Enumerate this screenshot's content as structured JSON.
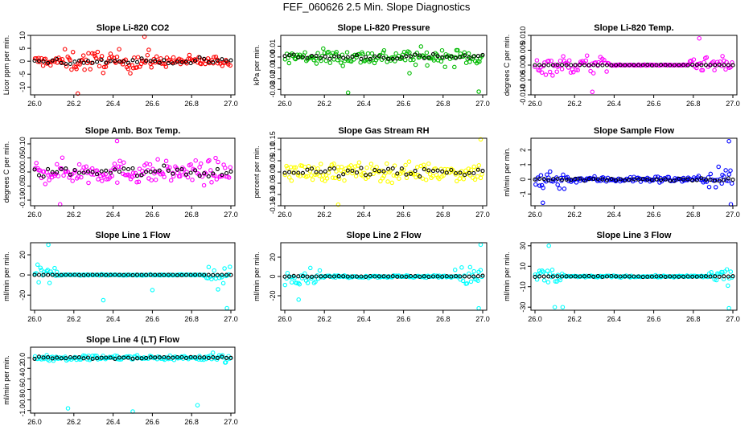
{
  "title": "FEF_060626  2.5 Min. Slope Diagnostics",
  "chart_data": [
    {
      "type": "scatter",
      "title": "Slope Li-820 CO2",
      "ylabel": "Licor ppm per min.",
      "color": "#ff0000",
      "xticks": [
        "26.0",
        "26.2",
        "26.4",
        "26.6",
        "26.8",
        "27.0"
      ],
      "xlim": [
        26.0,
        27.0
      ],
      "ylim": [
        -13,
        10
      ],
      "yticks": [
        -10,
        -5,
        0,
        5,
        10
      ],
      "ytick_labels": [
        "-10",
        "-5",
        "0",
        "5",
        "10"
      ],
      "spread": 2.5,
      "burst": [
        [
          26.15,
          26.6,
          5
        ]
      ],
      "outliers": [
        [
          26.22,
          -12.5
        ],
        [
          26.56,
          9.5
        ]
      ]
    },
    {
      "type": "scatter",
      "title": "Slope Li-820 Pressure",
      "ylabel": "kPa per min.",
      "color": "#00bb00",
      "xticks": [
        "26.0",
        "26.2",
        "26.4",
        "26.6",
        "26.8",
        "27.0"
      ],
      "xlim": [
        26.0,
        27.0
      ],
      "ylim": [
        -0.035,
        0.02
      ],
      "yticks": [
        -0.03,
        -0.02,
        -0.01,
        0.0,
        0.01
      ],
      "ytick_labels": [
        "-0.03",
        "-0.02",
        "-0.01",
        "0.00",
        "0.01"
      ],
      "spread": 0.006,
      "burst": [
        [
          26.0,
          27.0,
          0.009
        ]
      ],
      "outliers": [
        [
          26.32,
          -0.033
        ],
        [
          26.98,
          -0.032
        ],
        [
          26.63,
          -0.015
        ]
      ]
    },
    {
      "type": "scatter",
      "title": "Slope Li-820 Temp.",
      "ylabel": "degrees C per min.",
      "color": "#ff00ff",
      "xticks": [
        "26.0",
        "26.2",
        "26.4",
        "26.6",
        "26.8",
        "27.0"
      ],
      "xlim": [
        26.0,
        27.0
      ],
      "ylim": [
        -0.01,
        0.01
      ],
      "yticks": [
        -0.01,
        -0.005,
        0.0,
        0.005,
        0.01
      ],
      "ytick_labels": [
        "-0.010",
        "-0.005",
        "0.000",
        "0.005",
        "0.010"
      ],
      "spread": 0.0002,
      "burst": [
        [
          26.0,
          26.38,
          0.004
        ],
        [
          26.78,
          27.0,
          0.003
        ]
      ],
      "outliers": [
        [
          26.29,
          -0.009
        ],
        [
          26.83,
          0.009
        ]
      ]
    },
    {
      "type": "scatter",
      "title": "Slope Amb. Box Temp.",
      "ylabel": "degrees C per min.",
      "color": "#ff00ff",
      "xticks": [
        "26.0",
        "26.2",
        "26.4",
        "26.6",
        "26.8",
        "27.0"
      ],
      "xlim": [
        26.0,
        27.0
      ],
      "ylim": [
        -0.12,
        0.12
      ],
      "yticks": [
        -0.1,
        -0.05,
        0.0,
        0.05,
        0.1
      ],
      "ytick_labels": [
        "-0.10",
        "-0.05",
        "0.00",
        "0.05",
        "0.10"
      ],
      "spread": 0.05,
      "burst": [
        [
          26.0,
          27.0,
          0.05
        ]
      ],
      "outliers": [
        [
          26.13,
          -0.115
        ],
        [
          26.42,
          0.11
        ]
      ]
    },
    {
      "type": "scatter",
      "title": "Slope Gas Stream RH",
      "ylabel": "percent per min.",
      "color": "#ffff00",
      "xticks": [
        "26.0",
        "26.2",
        "26.4",
        "26.6",
        "26.8",
        "27.0"
      ],
      "xlim": [
        26.0,
        27.0
      ],
      "ylim": [
        -0.15,
        0.15
      ],
      "yticks": [
        -0.15,
        -0.1,
        -0.05,
        0.0,
        0.05,
        0.1,
        0.15
      ],
      "ytick_labels": [
        "-0.15",
        "-0.10",
        "-0.05",
        "0.00",
        "0.05",
        "0.10",
        "0.15"
      ],
      "spread": 0.05,
      "burst": [
        [
          26.0,
          27.0,
          0.04
        ]
      ],
      "outliers": [
        [
          26.27,
          -0.145
        ],
        [
          26.99,
          0.145
        ]
      ]
    },
    {
      "type": "scatter",
      "title": "Slope Sample Flow",
      "ylabel": "ml/min per min.",
      "color": "#0000ff",
      "xticks": [
        "26.0",
        "26.2",
        "26.4",
        "26.6",
        "26.8",
        "27.0"
      ],
      "xlim": [
        26.0,
        27.0
      ],
      "ylim": [
        -1.8,
        2.8
      ],
      "yticks": [
        -1,
        0,
        1,
        2
      ],
      "ytick_labels": [
        "-1",
        "0",
        "1",
        "2"
      ],
      "spread": 0.25,
      "burst": [
        [
          26.0,
          26.15,
          0.9
        ],
        [
          26.88,
          27.0,
          1.2
        ]
      ],
      "outliers": [
        [
          26.04,
          -1.6
        ],
        [
          26.98,
          2.6
        ],
        [
          26.99,
          -1.7
        ]
      ]
    },
    {
      "type": "scatter",
      "title": "Slope Line 1 Flow",
      "ylabel": "ml/min per min.",
      "color": "#00ffff",
      "xticks": [
        "26.0",
        "26.2",
        "26.4",
        "26.6",
        "26.8",
        "27.0"
      ],
      "xlim": [
        26.0,
        27.0
      ],
      "ylim": [
        -35,
        32
      ],
      "yticks": [
        -20,
        0,
        20
      ],
      "ytick_labels": [
        "-20",
        "0",
        "20"
      ],
      "spread": 0.5,
      "burst": [
        [
          26.0,
          26.12,
          12
        ],
        [
          26.86,
          27.0,
          14
        ]
      ],
      "outliers": [
        [
          26.07,
          30
        ],
        [
          26.98,
          -33
        ],
        [
          26.35,
          -25
        ],
        [
          26.6,
          -15
        ]
      ]
    },
    {
      "type": "scatter",
      "title": "Slope Line 2 Flow",
      "ylabel": "ml/min per min.",
      "color": "#00ffff",
      "xticks": [
        "26.0",
        "26.2",
        "26.4",
        "26.6",
        "26.8",
        "27.0"
      ],
      "xlim": [
        26.0,
        27.0
      ],
      "ylim": [
        -35,
        35
      ],
      "yticks": [
        -20,
        0,
        20
      ],
      "ytick_labels": [
        "-20",
        "0",
        "20"
      ],
      "spread": 1.5,
      "burst": [
        [
          26.0,
          26.18,
          9
        ],
        [
          26.86,
          27.0,
          12
        ]
      ],
      "outliers": [
        [
          26.99,
          33
        ],
        [
          26.98,
          -33
        ],
        [
          26.07,
          -24
        ]
      ]
    },
    {
      "type": "scatter",
      "title": "Slope Line 3 Flow",
      "ylabel": "ml/min per min.",
      "color": "#00ffff",
      "xticks": [
        "26.0",
        "26.2",
        "26.4",
        "26.6",
        "26.8",
        "27.0"
      ],
      "xlim": [
        26.0,
        27.0
      ],
      "ylim": [
        -33,
        33
      ],
      "yticks": [
        -30,
        -10,
        10,
        30
      ],
      "ytick_labels": [
        "-30",
        "-10",
        "10",
        "30"
      ],
      "spread": 1.0,
      "burst": [
        [
          26.0,
          26.15,
          9
        ],
        [
          26.88,
          27.0,
          11
        ]
      ],
      "outliers": [
        [
          26.07,
          30
        ],
        [
          26.1,
          -30
        ],
        [
          26.14,
          -30
        ],
        [
          26.98,
          -31
        ]
      ]
    },
    {
      "type": "scatter",
      "title": "Slope Line 4 (LT) Flow",
      "ylabel": "ml/min per min.",
      "color": "#00ffff",
      "xticks": [
        "26.0",
        "26.2",
        "26.4",
        "26.6",
        "26.8",
        "27.0"
      ],
      "xlim": [
        26.0,
        27.0
      ],
      "ylim": [
        -1.05,
        0.2
      ],
      "yticks": [
        -1.0,
        -0.8,
        -0.6,
        -0.4,
        -0.2,
        0.0
      ],
      "ytick_labels": [
        "-1.0",
        "-0.8",
        "-0.6",
        "-0.4",
        "-0.2",
        "0.0"
      ],
      "spread": 0.05,
      "burst": [
        [
          26.0,
          27.0,
          0.06
        ],
        [
          26.9,
          27.0,
          0.15
        ]
      ],
      "outliers": [
        [
          26.17,
          -0.96
        ],
        [
          26.5,
          -1.02
        ],
        [
          26.83,
          -0.9
        ]
      ]
    }
  ]
}
